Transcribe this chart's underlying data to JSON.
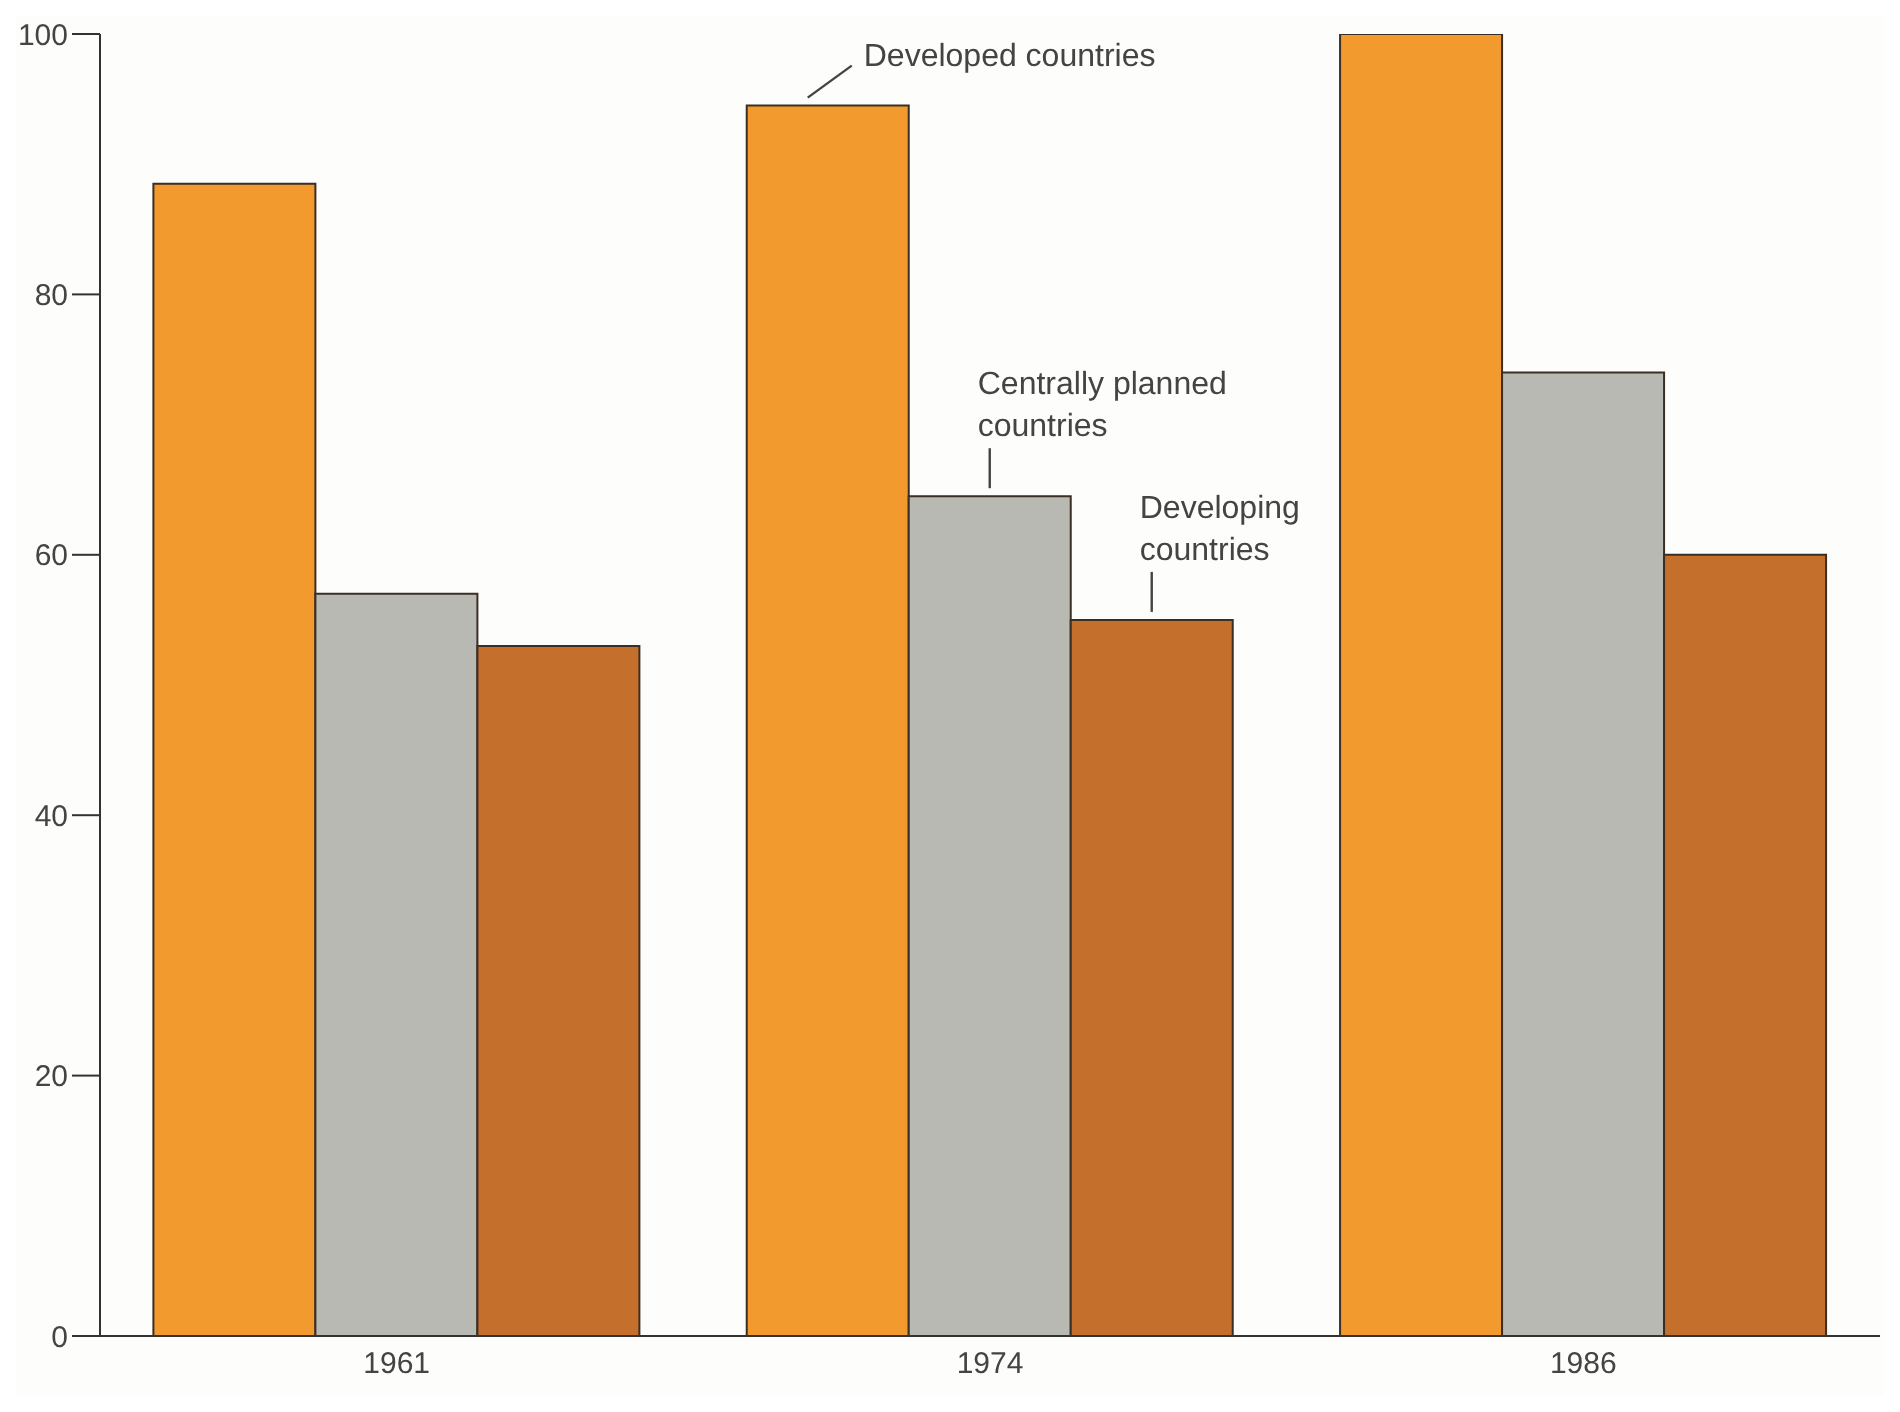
{
  "chart_data": {
    "type": "bar",
    "categories": [
      "1961",
      "1974",
      "1986"
    ],
    "series": [
      {
        "name": "Developed countries",
        "color": "#f39a2e",
        "values": [
          88.5,
          94.5,
          100
        ]
      },
      {
        "name": "Centrally planned countries",
        "color": "#b9b9b4",
        "values": [
          57,
          64.5,
          74
        ]
      },
      {
        "name": "Developing countries",
        "color": "#c46f2c",
        "values": [
          53,
          55,
          60
        ]
      }
    ],
    "ylim": [
      0,
      100
    ],
    "yticks": [
      0,
      20,
      40,
      60,
      80,
      100
    ],
    "grid": false,
    "legend": false
  }
}
